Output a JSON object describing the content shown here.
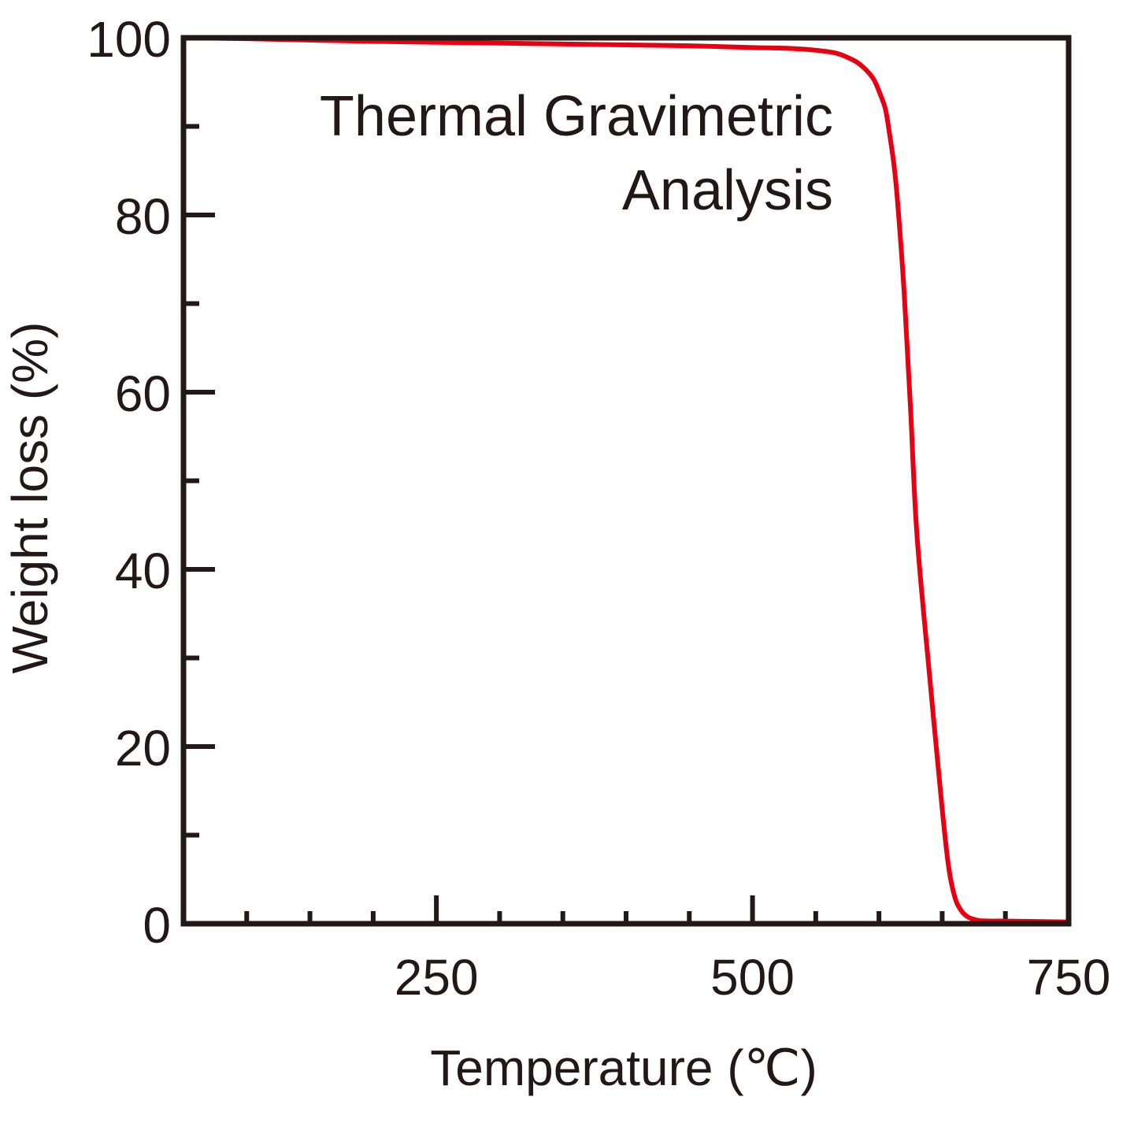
{
  "chart_data": {
    "type": "line",
    "title": "",
    "annotation_lines": [
      "Thermal Gravimetric",
      "Analysis"
    ],
    "xlabel": "Temperature (℃)",
    "ylabel": "Weight loss (%)",
    "xlim": [
      50,
      750
    ],
    "ylim": [
      0,
      100
    ],
    "x_ticks": [
      250,
      500,
      750
    ],
    "y_ticks": [
      0,
      20,
      40,
      60,
      80,
      100
    ],
    "x_minor_step": 50,
    "y_minor_step": 10,
    "grid": false,
    "colors": {
      "axis": "#231815",
      "series": "#e60012"
    },
    "series": [
      {
        "x": [
          50,
          100,
          200,
          300,
          400,
          450,
          500,
          530,
          550,
          565,
          575,
          585,
          595,
          600,
          605,
          608,
          612,
          615,
          620,
          625,
          630,
          640,
          650,
          655,
          660,
          665,
          670,
          675,
          680,
          690,
          700,
          750
        ],
        "y": [
          100,
          99.9,
          99.6,
          99.4,
          99.2,
          99.1,
          98.9,
          98.8,
          98.6,
          98.3,
          97.8,
          97.0,
          95.5,
          94.0,
          92.0,
          89.5,
          85.5,
          81.0,
          71.0,
          58.0,
          44.0,
          28.0,
          13.0,
          6.5,
          3.0,
          1.5,
          0.8,
          0.5,
          0.35,
          0.3,
          0.3,
          0.2
        ]
      }
    ]
  }
}
